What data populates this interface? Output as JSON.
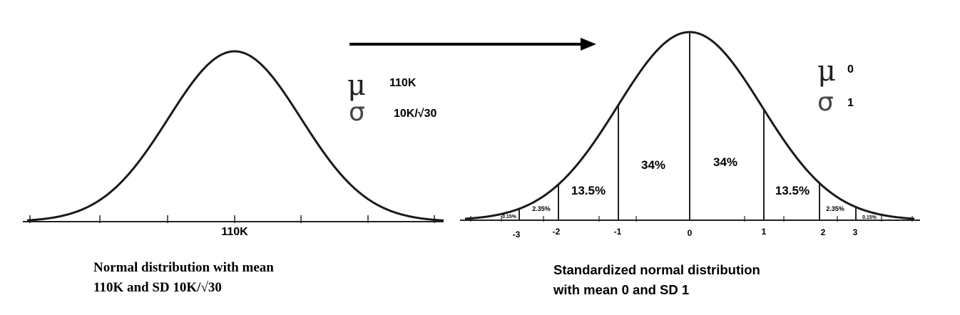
{
  "colors": {
    "curve": "#1a1a1a",
    "axis": "#222222",
    "background": "#ffffff"
  },
  "left_panel": {
    "center_label": "110K",
    "mu_symbol": "μ",
    "sigma_symbol": "σ",
    "mu_value": "110K",
    "sigma_value": "10K/√30",
    "caption_line1": "Normal distribution with mean",
    "caption_line2": "110K  and SD 10K/√30"
  },
  "right_panel": {
    "mu_symbol": "μ",
    "sigma_symbol": "σ",
    "mu_value": "0",
    "sigma_value": "1",
    "z_ticks": [
      "-3",
      "-2",
      "-1",
      "0",
      "1",
      "2",
      "3"
    ],
    "regions": [
      "0.15%",
      "2.35%",
      "13.5%",
      "34%",
      "34%",
      "13.5%",
      "2.35%",
      "0.15%"
    ],
    "caption_line1": "Standardized normal distribution",
    "caption_line2": "with mean 0 and SD 1"
  },
  "arrow": {
    "direction": "right"
  }
}
